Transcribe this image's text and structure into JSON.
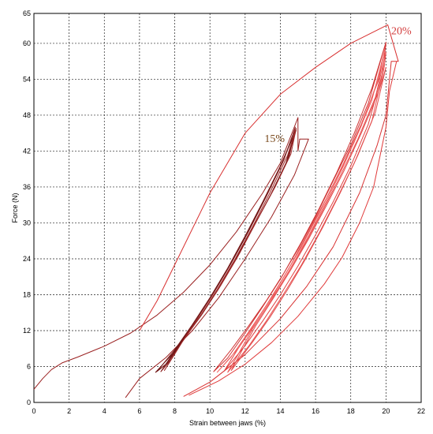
{
  "chart_data": {
    "type": "line",
    "xlabel": "Strain between jaws  (%)",
    "ylabel": "Force (N)",
    "xlim": [
      0,
      22
    ],
    "ylim": [
      0,
      65
    ],
    "xticks": [
      0,
      2,
      4,
      6,
      8,
      10,
      12,
      14,
      16,
      18,
      20,
      22
    ],
    "yticks": [
      0,
      6,
      12,
      18,
      24,
      30,
      36,
      42,
      48,
      54,
      60,
      65
    ],
    "grid": true,
    "annotations": [
      {
        "text": "15%",
        "x": 13.1,
        "y": 43.5,
        "color": "#7a4a1e"
      },
      {
        "text": "20%",
        "x": 20.3,
        "y": 61.5,
        "color": "#d23c3c"
      }
    ],
    "series": [
      {
        "color": "#9a2020",
        "points": [
          [
            0,
            2.2
          ],
          [
            0.5,
            4
          ],
          [
            1,
            5.5
          ],
          [
            1.6,
            6.6
          ],
          [
            2.5,
            7.6
          ],
          [
            4,
            9.4
          ],
          [
            5.5,
            11.6
          ],
          [
            7,
            14.6
          ],
          [
            8.5,
            18.4
          ],
          [
            10,
            23
          ],
          [
            11.5,
            28.5
          ],
          [
            13,
            35
          ],
          [
            14,
            40
          ],
          [
            15,
            47.6
          ],
          [
            15,
            42
          ],
          [
            15.1,
            44
          ],
          [
            15.6,
            44
          ],
          [
            14.8,
            38
          ],
          [
            13.5,
            31
          ],
          [
            12,
            24
          ],
          [
            10.5,
            17.5
          ],
          [
            9,
            12
          ],
          [
            7.5,
            7.5
          ],
          [
            6,
            4
          ],
          [
            5.2,
            0.8
          ]
        ]
      },
      {
        "color": "#7a1a1a",
        "points": [
          [
            7,
            5.2
          ],
          [
            8,
            8.8
          ],
          [
            9,
            13
          ],
          [
            10,
            17.5
          ],
          [
            11,
            22.4
          ],
          [
            12,
            27.8
          ],
          [
            13,
            33.5
          ],
          [
            14,
            39.5
          ],
          [
            14.9,
            45.5
          ],
          [
            14.4,
            40.5
          ],
          [
            13.5,
            35
          ],
          [
            12.5,
            29.5
          ],
          [
            11.5,
            24
          ],
          [
            10.5,
            19
          ],
          [
            9.5,
            14.5
          ],
          [
            8.5,
            10.5
          ],
          [
            7.6,
            6.6
          ],
          [
            7,
            5.2
          ]
        ]
      },
      {
        "color": "#8a2424",
        "points": [
          [
            7.2,
            5.1
          ],
          [
            8.2,
            9.5
          ],
          [
            9.2,
            13.6
          ],
          [
            10.2,
            18.2
          ],
          [
            11.2,
            23.2
          ],
          [
            12.2,
            28.6
          ],
          [
            13.2,
            34.4
          ],
          [
            14.2,
            40.5
          ],
          [
            14.85,
            46
          ],
          [
            14.5,
            41
          ],
          [
            13.6,
            35.5
          ],
          [
            12.6,
            30
          ],
          [
            11.6,
            24.5
          ],
          [
            10.6,
            19.5
          ],
          [
            9.6,
            15
          ],
          [
            8.6,
            11
          ],
          [
            7.8,
            7.2
          ],
          [
            7.2,
            5.1
          ]
        ]
      },
      {
        "color": "#6f1616",
        "points": [
          [
            6.9,
            5
          ],
          [
            7.9,
            8.2
          ],
          [
            8.9,
            12.5
          ],
          [
            9.9,
            17
          ],
          [
            10.9,
            21.8
          ],
          [
            11.9,
            27
          ],
          [
            12.9,
            32.8
          ],
          [
            13.9,
            38.8
          ],
          [
            14.8,
            45
          ],
          [
            14.3,
            39.8
          ],
          [
            13.4,
            34.4
          ],
          [
            12.4,
            29
          ],
          [
            11.4,
            23.6
          ],
          [
            10.4,
            18.6
          ],
          [
            9.4,
            14.2
          ],
          [
            8.4,
            10.2
          ],
          [
            7.5,
            6.4
          ],
          [
            6.9,
            5
          ]
        ]
      },
      {
        "color": "#a02a2a",
        "points": [
          [
            7.4,
            5.3
          ],
          [
            8.4,
            10
          ],
          [
            9.4,
            14.2
          ],
          [
            10.4,
            18.8
          ],
          [
            11.4,
            23.8
          ],
          [
            12.4,
            29.2
          ],
          [
            13.4,
            35
          ],
          [
            14.4,
            41.2
          ],
          [
            14.9,
            45.8
          ],
          [
            14.6,
            41.5
          ],
          [
            13.7,
            36
          ],
          [
            12.7,
            30.6
          ],
          [
            11.7,
            25
          ],
          [
            10.7,
            20
          ],
          [
            9.7,
            15.5
          ],
          [
            8.7,
            11.4
          ],
          [
            7.9,
            7.6
          ],
          [
            7.4,
            5.3
          ]
        ]
      },
      {
        "color": "#d83030",
        "points": [
          [
            8.5,
            1
          ],
          [
            10,
            3.4
          ],
          [
            12,
            8
          ],
          [
            14,
            14
          ],
          [
            15.5,
            19.4
          ],
          [
            17,
            26
          ],
          [
            18.5,
            35
          ],
          [
            19.5,
            43
          ],
          [
            20,
            48
          ],
          [
            20.3,
            57
          ],
          [
            20.7,
            57
          ],
          [
            20.1,
            63.1
          ],
          [
            18,
            60
          ],
          [
            16,
            56
          ],
          [
            14,
            51.5
          ],
          [
            12,
            45
          ],
          [
            10,
            35
          ],
          [
            8,
            23
          ],
          [
            7,
            17
          ],
          [
            6,
            12
          ]
        ]
      },
      {
        "color": "#e04040",
        "points": [
          [
            10.8,
            5.2
          ],
          [
            12,
            9.5
          ],
          [
            13,
            13.6
          ],
          [
            14,
            18
          ],
          [
            15,
            22.8
          ],
          [
            16,
            28
          ],
          [
            17,
            33.5
          ],
          [
            18,
            39.5
          ],
          [
            19,
            46.5
          ],
          [
            19.8,
            55
          ],
          [
            20,
            60
          ],
          [
            19.6,
            54
          ],
          [
            18.6,
            46.5
          ],
          [
            17.6,
            40
          ],
          [
            16.6,
            34
          ],
          [
            15.6,
            28.5
          ],
          [
            14.6,
            23
          ],
          [
            13.6,
            18
          ],
          [
            12.6,
            13.5
          ],
          [
            11.6,
            9
          ],
          [
            10.8,
            5.2
          ]
        ]
      },
      {
        "color": "#e85050",
        "points": [
          [
            11,
            5
          ],
          [
            12.2,
            9.4
          ],
          [
            13.2,
            13.6
          ],
          [
            14.2,
            18.2
          ],
          [
            15.2,
            23
          ],
          [
            16.2,
            28.3
          ],
          [
            17.2,
            34
          ],
          [
            18.2,
            40
          ],
          [
            19.2,
            47
          ],
          [
            19.9,
            56
          ],
          [
            20,
            58.5
          ],
          [
            19.4,
            51
          ],
          [
            18.4,
            44
          ],
          [
            17.4,
            37.8
          ],
          [
            16.4,
            32
          ],
          [
            15.4,
            26.5
          ],
          [
            14.4,
            21.5
          ],
          [
            13.4,
            16.8
          ],
          [
            12.4,
            12.2
          ],
          [
            11.6,
            8
          ],
          [
            11,
            5
          ]
        ]
      },
      {
        "color": "#f06060",
        "points": [
          [
            10.4,
            5
          ],
          [
            11.6,
            9
          ],
          [
            12.6,
            13.2
          ],
          [
            13.6,
            17.6
          ],
          [
            14.6,
            22.5
          ],
          [
            15.6,
            27.8
          ],
          [
            16.6,
            33.5
          ],
          [
            17.6,
            39.6
          ],
          [
            18.6,
            46.2
          ],
          [
            19.5,
            53.5
          ],
          [
            19.95,
            59
          ],
          [
            19.2,
            50.5
          ],
          [
            18.2,
            43.5
          ],
          [
            17.2,
            37.5
          ],
          [
            16.2,
            31.6
          ],
          [
            15.2,
            26
          ],
          [
            14.2,
            21
          ],
          [
            13.2,
            16.2
          ],
          [
            12.2,
            11.8
          ],
          [
            11.2,
            7.6
          ],
          [
            10.4,
            5
          ]
        ]
      },
      {
        "color": "#d03636",
        "points": [
          [
            10.2,
            5.1
          ],
          [
            11.2,
            8.8
          ],
          [
            12.2,
            12.8
          ],
          [
            13.2,
            17
          ],
          [
            14.2,
            21.6
          ],
          [
            15.2,
            26.8
          ],
          [
            16.2,
            32.4
          ],
          [
            17.2,
            38.4
          ],
          [
            18.2,
            45
          ],
          [
            19.2,
            52.5
          ],
          [
            20,
            60.2
          ],
          [
            19.0,
            50
          ],
          [
            18,
            43
          ],
          [
            17,
            37
          ],
          [
            16,
            31
          ],
          [
            15,
            25.6
          ],
          [
            14,
            20.6
          ],
          [
            13,
            16
          ],
          [
            12,
            11.6
          ],
          [
            11,
            7.4
          ],
          [
            10.2,
            5.1
          ]
        ]
      },
      {
        "color": "#e14a4a",
        "points": [
          [
            11.2,
            5.3
          ],
          [
            12.4,
            10
          ],
          [
            13.4,
            14.2
          ],
          [
            14.4,
            18.8
          ],
          [
            15.4,
            23.8
          ],
          [
            16.4,
            29.2
          ],
          [
            17.4,
            35
          ],
          [
            18.4,
            41.3
          ],
          [
            19.4,
            48.5
          ],
          [
            20,
            56
          ],
          [
            19.6,
            52
          ],
          [
            18.6,
            45
          ],
          [
            17.6,
            38.6
          ],
          [
            16.6,
            32.8
          ],
          [
            15.6,
            27.3
          ],
          [
            14.6,
            22.2
          ],
          [
            13.6,
            17.4
          ],
          [
            12.6,
            12.8
          ],
          [
            11.8,
            8.6
          ],
          [
            11.2,
            5.3
          ]
        ]
      },
      {
        "color": "#e03a3a",
        "points": [
          [
            8.8,
            1.2
          ],
          [
            10.5,
            3.6
          ],
          [
            12,
            6.4
          ],
          [
            13.5,
            10
          ],
          [
            15,
            14.4
          ],
          [
            16.5,
            19.8
          ],
          [
            17.5,
            24.2
          ],
          [
            18.5,
            30
          ],
          [
            19.3,
            36
          ],
          [
            20,
            46
          ],
          [
            20.2,
            52
          ],
          [
            20.6,
            57
          ]
        ]
      }
    ]
  }
}
